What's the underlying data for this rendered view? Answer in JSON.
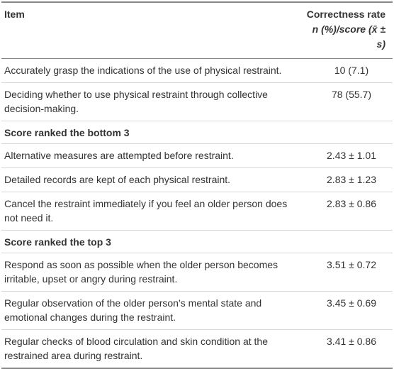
{
  "table": {
    "header": {
      "item": "Item",
      "rate": "Correctness rate",
      "rate_unit": "n (%)/score (x̄ ± s)"
    },
    "rows": [
      {
        "item": "Accurately grasp the indications of the use of physical restraint.",
        "value": "10 (7.1)"
      },
      {
        "item": "Deciding whether to use physical restraint through collective decision-making.",
        "value": "78 (55.7)"
      },
      {
        "section": "Score ranked the bottom 3"
      },
      {
        "item": "Alternative measures are attempted before restraint.",
        "value": "2.43 ± 1.01"
      },
      {
        "item": "Detailed records are kept of each physical restraint.",
        "value": "2.83 ± 1.23"
      },
      {
        "item": "Cancel the restraint immediately if you feel an older person does not need it.",
        "value": "2.83 ± 0.86"
      },
      {
        "section": "Score ranked the top 3"
      },
      {
        "item": "Respond as soon as possible when the older person becomes irritable, upset or angry during restraint.",
        "value": "3.51 ± 0.72"
      },
      {
        "item": "Regular observation of the older person’s mental state and emotional changes during the restraint.",
        "value": "3.45 ± 0.69"
      },
      {
        "item": "Regular checks of blood circulation and skin condition at the restrained area during restraint.",
        "value": "3.41 ± 0.86"
      }
    ]
  }
}
